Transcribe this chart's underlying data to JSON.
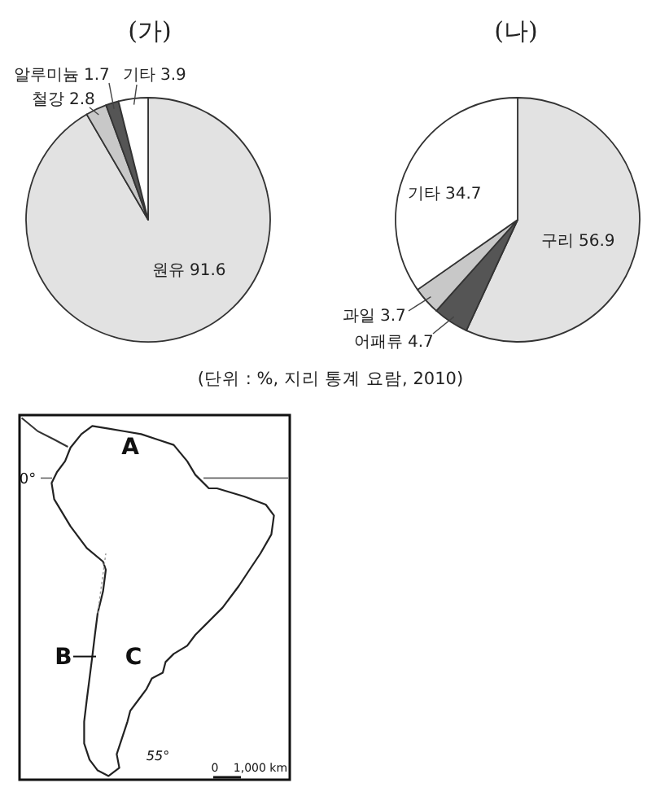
{
  "chart_data": [
    {
      "type": "pie",
      "title": "(가)",
      "categories": [
        "원유",
        "철강",
        "알루미늄",
        "기타"
      ],
      "values": [
        91.6,
        2.8,
        1.7,
        3.9
      ],
      "colors": [
        "#e2e2e2",
        "#c8c8c8",
        "#555555",
        "#ffffff"
      ],
      "data_labels": true
    },
    {
      "type": "pie",
      "title": "(나)",
      "categories": [
        "구리",
        "어패류",
        "과일",
        "기타"
      ],
      "values": [
        56.9,
        4.7,
        3.7,
        34.7
      ],
      "colors": [
        "#e2e2e2",
        "#555555",
        "#c8c8c8",
        "#ffffff"
      ],
      "data_labels": true,
      "annotations": [
        "(단위 : %, 지리 통계 요람, 2010)"
      ]
    },
    {
      "type": "other",
      "annotations": [
        "A",
        "B",
        "C",
        "0°",
        "55°",
        "0",
        "1,000 km"
      ]
    }
  ]
}
